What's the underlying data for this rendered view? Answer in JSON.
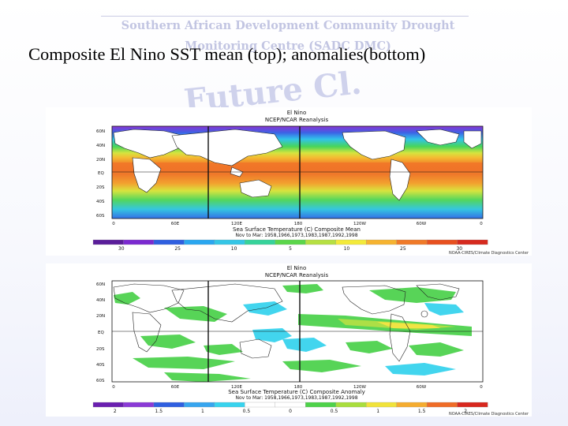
{
  "slide": {
    "watermark_line1": "Southern African Development Community Drought",
    "watermark_line2": "Monitoring Centre (SADC DMC)",
    "watermark_banner": "Future Cl.",
    "title": "Composite El Nino SST mean (top);  anomalies(bottom)"
  },
  "top_map": {
    "header1": "El Nino",
    "header2": "NCEP/NCAR Reanalysis",
    "lat_labels": [
      "60N",
      "40N",
      "20N",
      "EQ",
      "20S",
      "40S",
      "60S"
    ],
    "lon_labels": [
      "0",
      "60E",
      "120E",
      "180",
      "120W",
      "60W",
      "0"
    ],
    "caption1": "Sea Surface Temperature (C) Composite Mean",
    "caption2": "Nov to Mar: 1958,1966,1973,1983,1987,1992,1998",
    "colorbar_ticks": [
      "30",
      "25",
      "10",
      "5",
      "10",
      "25",
      "30"
    ],
    "colorbar_colors": [
      "#5a1d9a",
      "#7b2ad0",
      "#2f5fe0",
      "#2aa7f0",
      "#35c6e6",
      "#36d39a",
      "#5bd64a",
      "#b6e042",
      "#f3ea3a",
      "#f6b330",
      "#f07a28",
      "#e8501f",
      "#d62a1e"
    ],
    "credit": "NOAA-CIRES/Climate Diagnostics Center"
  },
  "bottom_map": {
    "header1": "El Nino",
    "header2": "NCEP/NCAR Reanalysis",
    "lat_labels": [
      "60N",
      "40N",
      "20N",
      "EQ",
      "20S",
      "40S",
      "60S"
    ],
    "lon_labels": [
      "0",
      "60E",
      "120E",
      "180",
      "120W",
      "60W",
      "0"
    ],
    "caption1": "Sea Surface Temperature (C) Composite Anomaly",
    "caption2": "Nov to Mar: 1958,1966,1973,1983,1987,1992,1998",
    "colorbar_ticks": [
      "2",
      "1.5",
      "1",
      "0.5",
      "0",
      "0.5",
      "1",
      "1.5",
      "2"
    ],
    "colorbar_colors": [
      "#6a1fb0",
      "#8b3ad6",
      "#2f5fe0",
      "#37a5ef",
      "#38d3ee",
      "#ffffff",
      "#ffffff",
      "#4ed24a",
      "#a9de3d",
      "#f1e33a",
      "#f5ac2f",
      "#ef6c27",
      "#d8271e"
    ],
    "credit": "NOAA-CIRES/Climate Diagnostics Center"
  }
}
